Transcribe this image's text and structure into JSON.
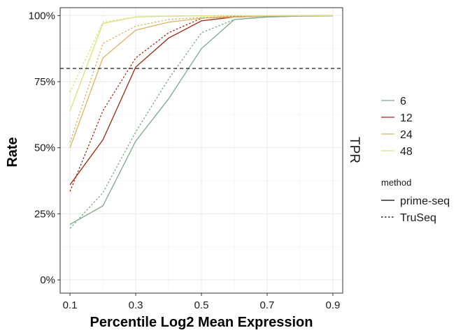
{
  "chart_data": {
    "type": "line",
    "xlabel": "Percentile Log2 Mean Expression",
    "ylabel": "Rate",
    "facet_label": "TPR",
    "xlim": [
      0.07,
      0.93
    ],
    "ylim": [
      -0.05,
      1.03
    ],
    "x_ticks": [
      0.1,
      0.3,
      0.5,
      0.7,
      0.9
    ],
    "x_tick_labels": [
      "0.1",
      "0.3",
      "0.5",
      "0.7",
      "0.9"
    ],
    "y_ticks": [
      0,
      0.25,
      0.5,
      0.75,
      1.0
    ],
    "y_tick_labels": [
      "0%",
      "25%",
      "50%",
      "75%",
      "100%"
    ],
    "hline": 0.8,
    "grid": true,
    "legend_position": "right",
    "color_legend": {
      "title": "",
      "entries": [
        {
          "label": "6",
          "color": "#7fa88a"
        },
        {
          "label": "12",
          "color": "#9a2a14"
        },
        {
          "label": "24",
          "color": "#dcb463"
        },
        {
          "label": "48",
          "color": "#dbe07e"
        }
      ]
    },
    "linetype_legend": {
      "title": "method",
      "entries": [
        {
          "label": "prime-seq",
          "dash": "solid"
        },
        {
          "label": "TruSeq",
          "dash": "dotted"
        }
      ]
    },
    "x": [
      0.1,
      0.2,
      0.3,
      0.4,
      0.5,
      0.6,
      0.7,
      0.8,
      0.9
    ],
    "series": [
      {
        "group": "6",
        "method": "prime-seq",
        "color": "#7fa88a",
        "dash": "solid",
        "values": [
          0.21,
          0.28,
          0.525,
          0.685,
          0.875,
          0.985,
          0.995,
          0.998,
          0.999
        ]
      },
      {
        "group": "6",
        "method": "TruSeq",
        "color": "#7fa88a",
        "dash": "dotted",
        "values": [
          0.195,
          0.33,
          0.56,
          0.76,
          0.935,
          0.985,
          0.995,
          0.998,
          0.999
        ]
      },
      {
        "group": "12",
        "method": "prime-seq",
        "color": "#9a2a14",
        "dash": "solid",
        "values": [
          0.36,
          0.53,
          0.805,
          0.915,
          0.98,
          0.995,
          0.998,
          0.999,
          1.0
        ]
      },
      {
        "group": "12",
        "method": "TruSeq",
        "color": "#9a2a14",
        "dash": "dotted",
        "values": [
          0.335,
          0.64,
          0.84,
          0.935,
          0.99,
          0.997,
          0.999,
          1.0,
          1.0
        ]
      },
      {
        "group": "24",
        "method": "prime-seq",
        "color": "#dcb463",
        "dash": "solid",
        "values": [
          0.5,
          0.84,
          0.945,
          0.975,
          0.99,
          0.995,
          0.998,
          0.999,
          1.0
        ]
      },
      {
        "group": "24",
        "method": "TruSeq",
        "color": "#dcb463",
        "dash": "dotted",
        "values": [
          0.52,
          0.895,
          0.96,
          0.985,
          0.993,
          0.997,
          0.999,
          1.0,
          1.0
        ]
      },
      {
        "group": "48",
        "method": "prime-seq",
        "color": "#dbe07e",
        "dash": "solid",
        "values": [
          0.64,
          0.97,
          0.995,
          0.998,
          0.999,
          1.0,
          1.0,
          1.0,
          1.0
        ]
      },
      {
        "group": "48",
        "method": "TruSeq",
        "color": "#dbe07e",
        "dash": "dotted",
        "values": [
          0.71,
          0.975,
          0.995,
          0.998,
          0.999,
          1.0,
          1.0,
          1.0,
          1.0
        ]
      }
    ]
  }
}
